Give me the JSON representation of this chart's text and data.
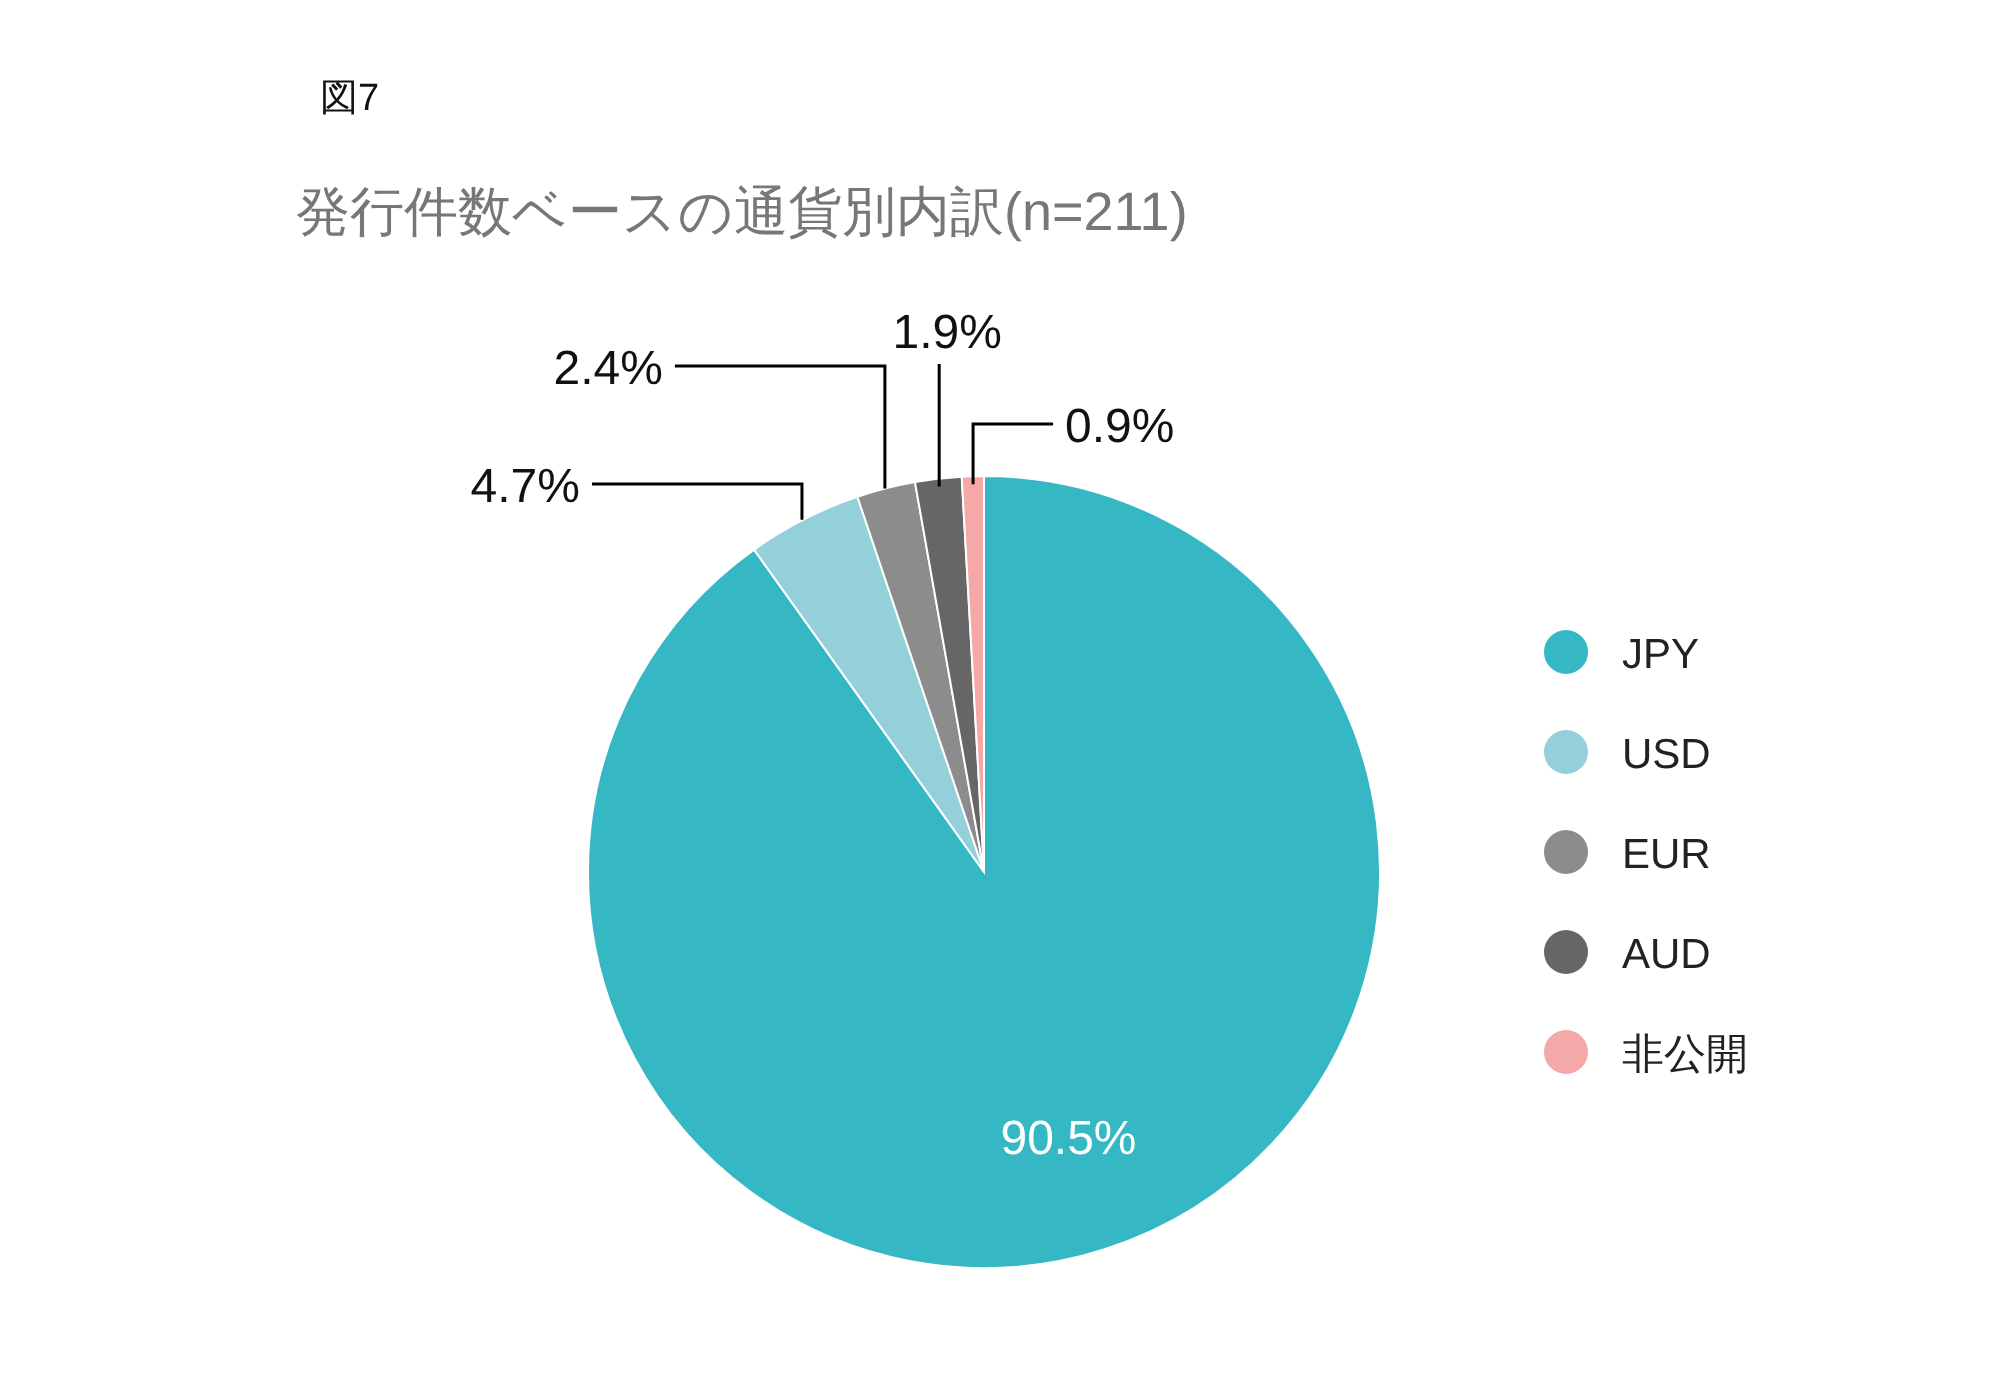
{
  "chart_data": {
    "type": "pie",
    "title": "発行件数ベースの通貨別内訳(n=211)",
    "annotations": [
      "図7"
    ],
    "categories": [
      "JPY",
      "USD",
      "EUR",
      "AUD",
      "非公開"
    ],
    "values": [
      90.5,
      4.7,
      2.4,
      1.9,
      0.9
    ],
    "colors": [
      "#35b8c4",
      "#94d0da",
      "#8c8c8c",
      "#666666",
      "#f4a8a8"
    ],
    "value_labels": [
      "90.5%",
      "4.7%",
      "2.4%",
      "1.9%",
      "0.9%"
    ],
    "legend": "right"
  }
}
